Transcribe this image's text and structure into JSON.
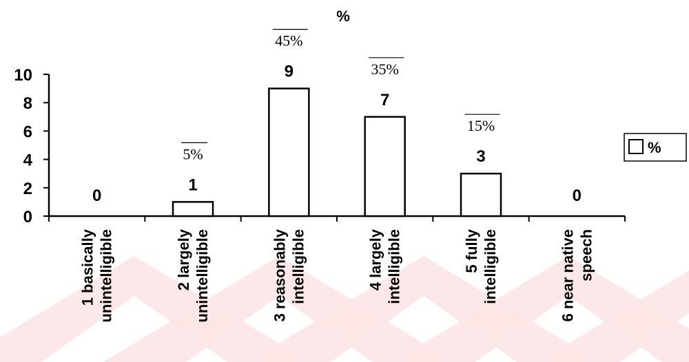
{
  "chart_data": {
    "type": "bar",
    "title": "%",
    "categories": [
      [
        "1 basically",
        "unintelligible"
      ],
      [
        "2 largely",
        "unintelligible"
      ],
      [
        "3 reasonably",
        "intelligible"
      ],
      [
        "4 largely",
        "intelligible"
      ],
      [
        "5 fully",
        "intelligible"
      ],
      [
        "6 near native",
        "speech"
      ]
    ],
    "values": [
      0,
      1,
      9,
      7,
      3,
      0
    ],
    "value_labels": [
      "0",
      "1",
      "9",
      "7",
      "3",
      "0"
    ],
    "percent_labels": [
      "",
      "5%",
      "45%",
      "35%",
      "15%",
      ""
    ],
    "y_ticks": [
      "0",
      "2",
      "4",
      "6",
      "8",
      "10"
    ],
    "ylim": [
      0,
      10
    ],
    "legend": {
      "label": "%",
      "position": "right"
    },
    "bar_fill": "#ffffff",
    "bar_stroke": "#000000",
    "watermark_color": "#fce6e6"
  }
}
